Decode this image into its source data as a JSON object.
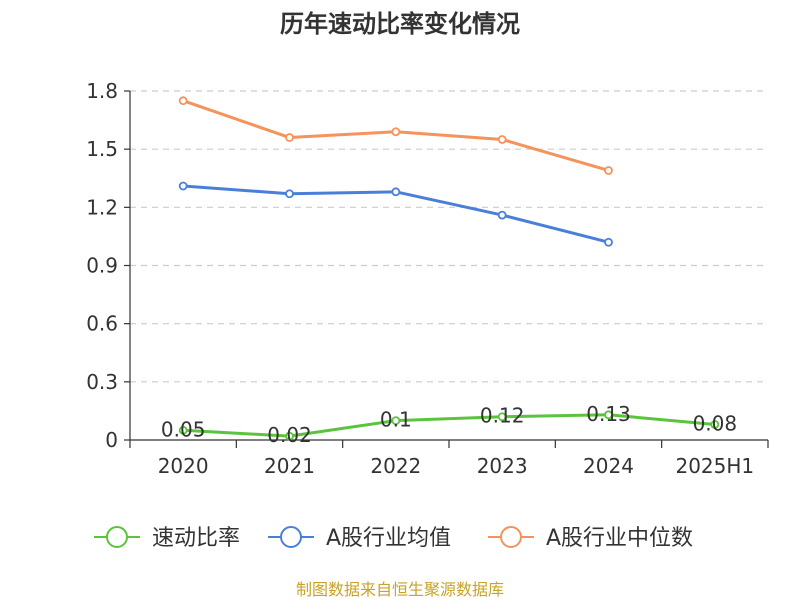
{
  "title": "历年速动比率变化情况",
  "source": "制图数据来自恒生聚源数据库",
  "chart_data": {
    "type": "line",
    "title": "历年速动比率变化情况",
    "categories": [
      "2020",
      "2021",
      "2022",
      "2023",
      "2024",
      "2025H1"
    ],
    "ylim": [
      0,
      1.8
    ],
    "yticks": [
      "0",
      "0.3",
      "0.6",
      "0.9",
      "1.2",
      "1.5",
      "1.8"
    ],
    "grid": true,
    "legend_position": "bottom",
    "series": [
      {
        "name": "速动比率",
        "color": "#5ac43d",
        "values": [
          0.05,
          0.02,
          0.1,
          0.12,
          0.13,
          0.08
        ],
        "labels": [
          "0.05",
          "0.02",
          "0.1",
          "0.12",
          "0.13",
          "0.08"
        ]
      },
      {
        "name": "A股行业均值",
        "color": "#4a7fd9",
        "values": [
          1.31,
          1.27,
          1.28,
          1.16,
          1.02,
          null
        ]
      },
      {
        "name": "A股行业中位数",
        "color": "#f5935a",
        "values": [
          1.75,
          1.56,
          1.59,
          1.55,
          1.39,
          null
        ]
      }
    ]
  }
}
